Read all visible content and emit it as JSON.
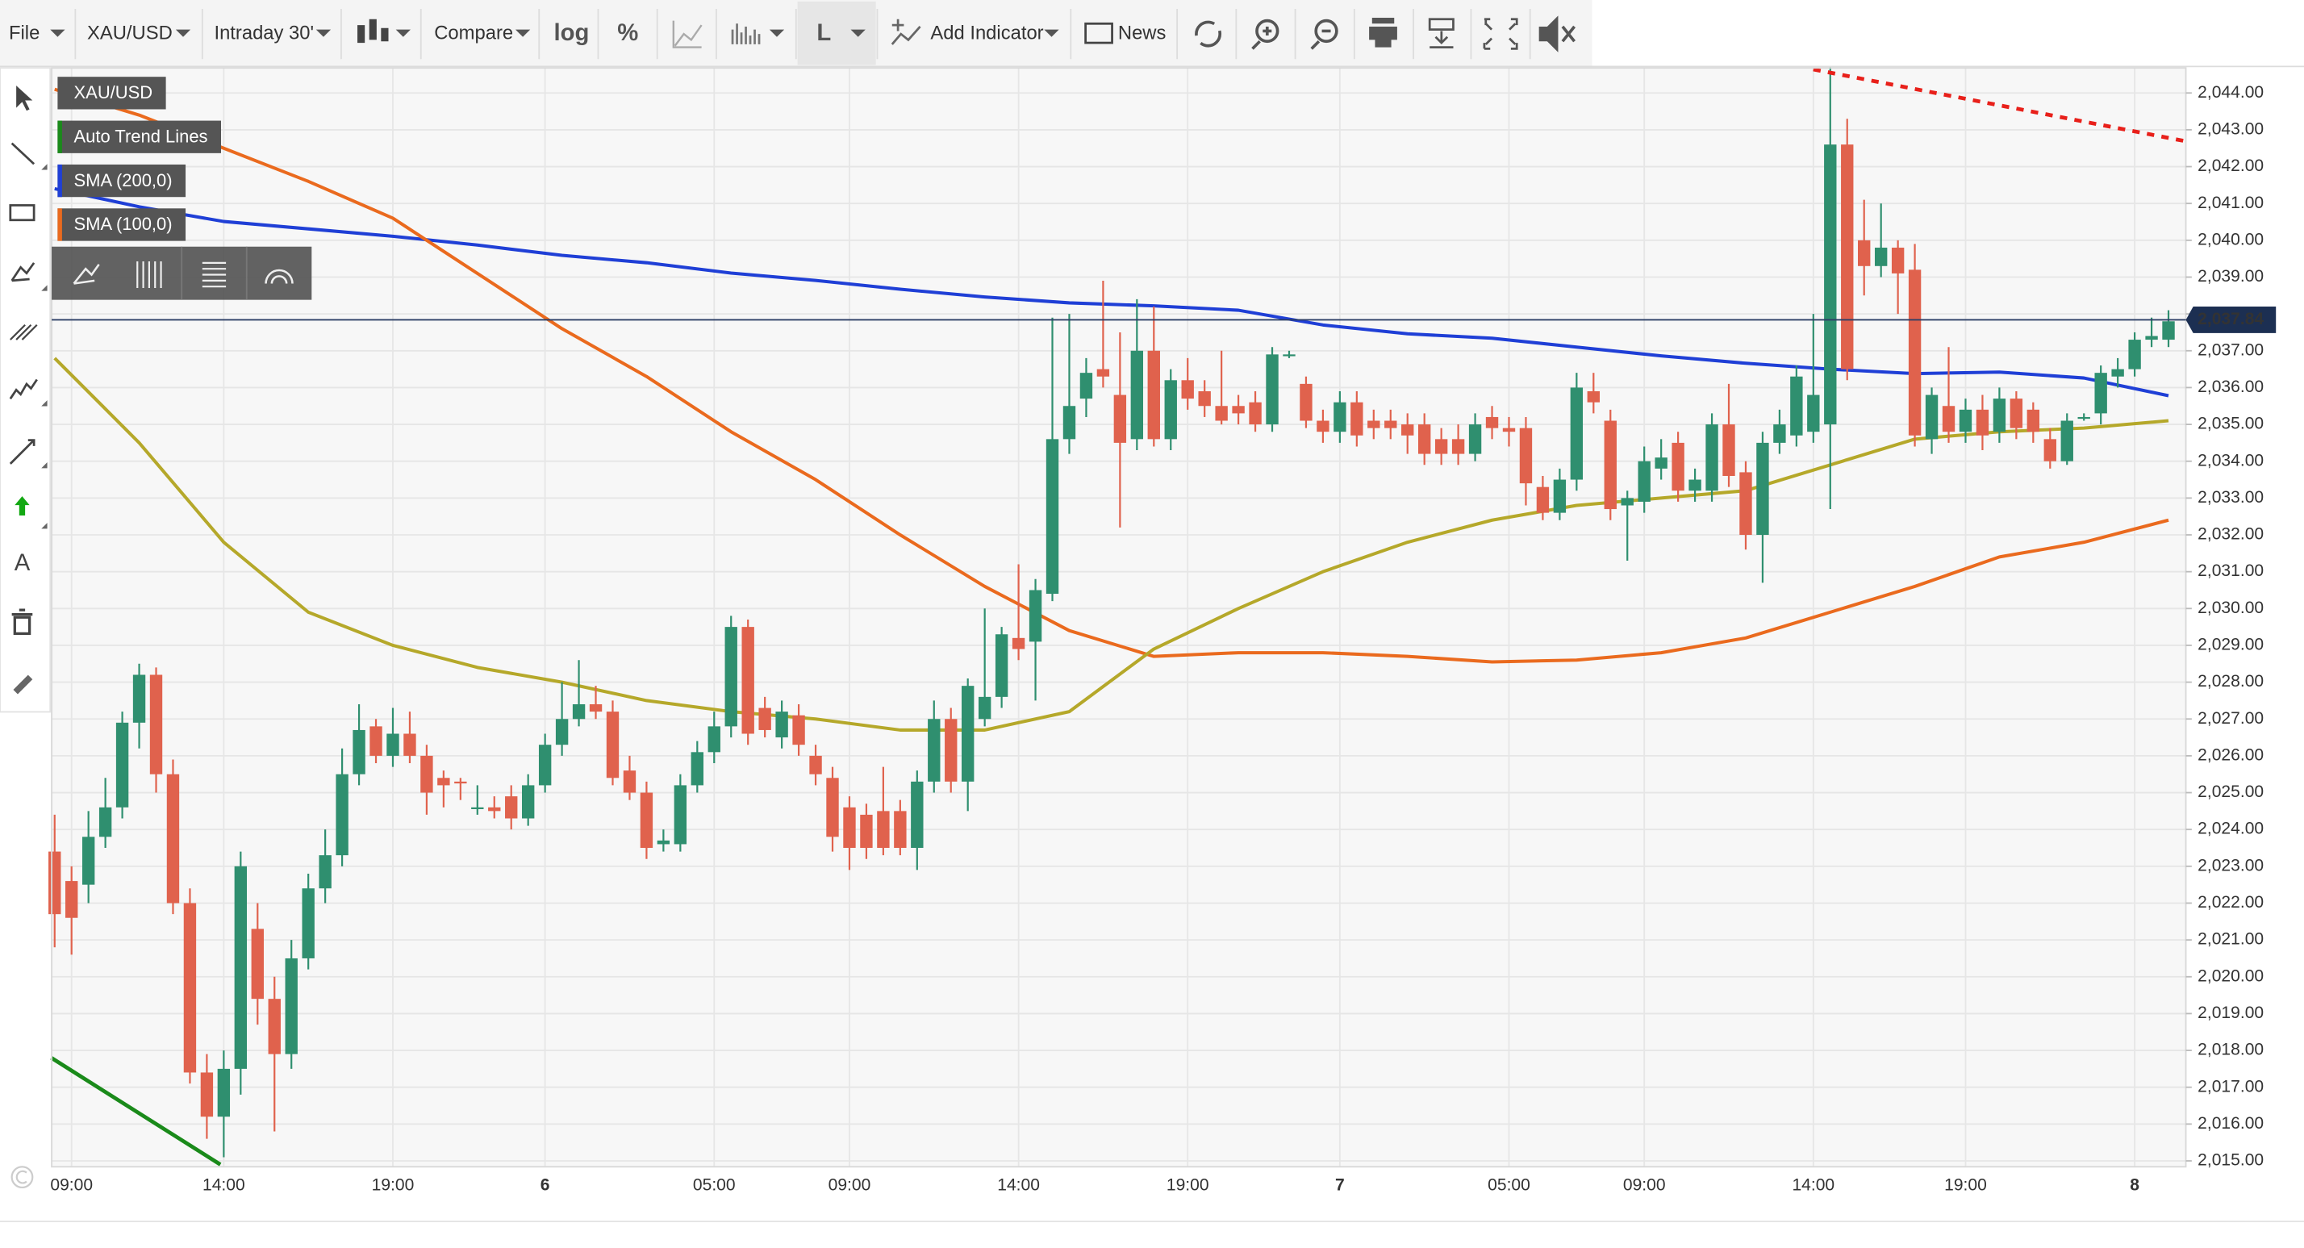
{
  "toolbar": {
    "file": "File",
    "symbol": "XAU/USD",
    "interval": "Intraday 30'",
    "compare": "Compare",
    "log": "log",
    "percent": "%",
    "line_type": "L",
    "add_indicator": "Add Indicator",
    "news": "News"
  },
  "draw_tools": {
    "text": "A"
  },
  "chart_data": {
    "type": "candlestick",
    "name": "XAU/USD",
    "up_color": "#2f8f6f",
    "down_color": "#e0624d",
    "grid": true,
    "ylim": [
      2014.84,
      2044.68
    ],
    "yticks": [
      {
        "value": 2015,
        "label": "2,015.00"
      },
      {
        "value": 2016,
        "label": "2,016.00"
      },
      {
        "value": 2017,
        "label": "2,017.00"
      },
      {
        "value": 2018,
        "label": "2,018.00"
      },
      {
        "value": 2019,
        "label": "2,019.00"
      },
      {
        "value": 2020,
        "label": "2,020.00"
      },
      {
        "value": 2021,
        "label": "2,021.00"
      },
      {
        "value": 2022,
        "label": "2,022.00"
      },
      {
        "value": 2023,
        "label": "2,023.00"
      },
      {
        "value": 2024,
        "label": "2,024.00"
      },
      {
        "value": 2025,
        "label": "2,025.00"
      },
      {
        "value": 2026,
        "label": "2,026.00"
      },
      {
        "value": 2027,
        "label": "2,027.00"
      },
      {
        "value": 2028,
        "label": "2,028.00"
      },
      {
        "value": 2029,
        "label": "2,029.00"
      },
      {
        "value": 2030,
        "label": "2,030.00"
      },
      {
        "value": 2031,
        "label": "2,031.00"
      },
      {
        "value": 2032,
        "label": "2,032.00"
      },
      {
        "value": 2033,
        "label": "2,033.00"
      },
      {
        "value": 2034,
        "label": "2,034.00"
      },
      {
        "value": 2035,
        "label": "2,035.00"
      },
      {
        "value": 2036,
        "label": "2,036.00"
      },
      {
        "value": 2037,
        "label": "2,037.00"
      },
      {
        "value": 2038,
        "label": "2,038.00"
      },
      {
        "value": 2039,
        "label": "2,039.00"
      },
      {
        "value": 2040,
        "label": "2,040.00"
      },
      {
        "value": 2041,
        "label": "2,041.00"
      },
      {
        "value": 2042,
        "label": "2,042.00"
      },
      {
        "value": 2043,
        "label": "2,043.00"
      },
      {
        "value": 2044,
        "label": "2,044.00"
      }
    ],
    "categories": [
      null,
      "09:00",
      null,
      null,
      null,
      null,
      null,
      null,
      null,
      null,
      "14:00",
      null,
      null,
      null,
      null,
      null,
      null,
      null,
      null,
      null,
      "19:00",
      null,
      null,
      null,
      null,
      null,
      null,
      null,
      null,
      "6",
      null,
      null,
      null,
      null,
      null,
      null,
      null,
      null,
      null,
      "05:00",
      null,
      null,
      null,
      null,
      null,
      null,
      null,
      "09:00",
      null,
      null,
      null,
      null,
      null,
      null,
      null,
      null,
      null,
      "14:00",
      null,
      null,
      null,
      null,
      null,
      null,
      null,
      null,
      null,
      "19:00",
      null,
      null,
      null,
      null,
      null,
      null,
      null,
      null,
      "7",
      null,
      null,
      null,
      null,
      null,
      null,
      null,
      null,
      null,
      "05:00",
      null,
      null,
      null,
      null,
      null,
      null,
      null,
      "09:00",
      null,
      null,
      null,
      null,
      null,
      null,
      null,
      null,
      null,
      "14:00",
      null,
      null,
      null,
      null,
      null,
      null,
      null,
      null,
      "19:00",
      null,
      null,
      null,
      null,
      null,
      null,
      null,
      null,
      null,
      "8",
      null,
      null
    ],
    "ohlc": [
      [
        2023.4,
        2024.4,
        2020.8,
        2021.7
      ],
      [
        2022.6,
        2023.0,
        2020.6,
        2021.6
      ],
      [
        2022.5,
        2024.5,
        2022.0,
        2023.8
      ],
      [
        2023.8,
        2025.4,
        2023.5,
        2024.6
      ],
      [
        2024.6,
        2027.2,
        2024.3,
        2026.9
      ],
      [
        2026.9,
        2028.5,
        2026.2,
        2028.2
      ],
      [
        2028.2,
        2028.4,
        2025.0,
        2025.5
      ],
      [
        2025.5,
        2025.9,
        2021.7,
        2022.0
      ],
      [
        2022.0,
        2022.4,
        2017.1,
        2017.4
      ],
      [
        2017.4,
        2017.9,
        2015.6,
        2016.2
      ],
      [
        2016.2,
        2018.0,
        2015.1,
        2017.5
      ],
      [
        2017.5,
        2023.4,
        2016.8,
        2023.0
      ],
      [
        2021.3,
        2022.0,
        2018.7,
        2019.4
      ],
      [
        2019.4,
        2020.0,
        2015.8,
        2017.9
      ],
      [
        2017.9,
        2021.0,
        2017.5,
        2020.5
      ],
      [
        2020.5,
        2022.8,
        2020.2,
        2022.4
      ],
      [
        2022.4,
        2024.0,
        2022.0,
        2023.3
      ],
      [
        2023.3,
        2026.2,
        2023.0,
        2025.5
      ],
      [
        2025.5,
        2027.4,
        2025.2,
        2026.7
      ],
      [
        2026.8,
        2027.0,
        2025.8,
        2026.0
      ],
      [
        2026.0,
        2027.3,
        2025.7,
        2026.6
      ],
      [
        2026.6,
        2027.2,
        2025.8,
        2026.0
      ],
      [
        2026.0,
        2026.3,
        2024.4,
        2025.0
      ],
      [
        2025.4,
        2025.6,
        2024.6,
        2025.2
      ],
      [
        2025.3,
        2025.4,
        2024.8,
        2025.25
      ],
      [
        2024.6,
        2025.2,
        2024.4,
        2024.6
      ],
      [
        2024.6,
        2024.9,
        2024.3,
        2024.5
      ],
      [
        2024.9,
        2025.2,
        2024.0,
        2024.3
      ],
      [
        2024.3,
        2025.5,
        2024.1,
        2025.2
      ],
      [
        2025.2,
        2026.6,
        2025.0,
        2026.3
      ],
      [
        2026.3,
        2028.0,
        2026.0,
        2027.0
      ],
      [
        2027.0,
        2028.6,
        2026.8,
        2027.4
      ],
      [
        2027.4,
        2027.9,
        2027.0,
        2027.2
      ],
      [
        2027.2,
        2027.5,
        2025.2,
        2025.4
      ],
      [
        2025.6,
        2026.0,
        2024.8,
        2025.0
      ],
      [
        2025.0,
        2025.3,
        2023.2,
        2023.5
      ],
      [
        2023.6,
        2024.0,
        2023.4,
        2023.7
      ],
      [
        2023.6,
        2025.5,
        2023.4,
        2025.2
      ],
      [
        2025.2,
        2026.4,
        2025.0,
        2026.1
      ],
      [
        2026.1,
        2027.2,
        2025.8,
        2026.8
      ],
      [
        2026.8,
        2029.8,
        2026.5,
        2029.5
      ],
      [
        2029.5,
        2029.7,
        2026.3,
        2026.6
      ],
      [
        2027.3,
        2027.6,
        2026.5,
        2026.7
      ],
      [
        2026.5,
        2027.5,
        2026.2,
        2027.2
      ],
      [
        2027.1,
        2027.4,
        2026.0,
        2026.3
      ],
      [
        2026.0,
        2026.3,
        2025.2,
        2025.5
      ],
      [
        2025.4,
        2025.7,
        2023.4,
        2023.8
      ],
      [
        2024.6,
        2024.9,
        2022.9,
        2023.5
      ],
      [
        2024.4,
        2024.7,
        2023.2,
        2023.5
      ],
      [
        2024.5,
        2025.7,
        2023.3,
        2023.5
      ],
      [
        2024.5,
        2024.8,
        2023.3,
        2023.5
      ],
      [
        2023.5,
        2025.6,
        2022.9,
        2025.3
      ],
      [
        2025.3,
        2027.5,
        2025.0,
        2027.0
      ],
      [
        2027.0,
        2027.3,
        2025.0,
        2025.3
      ],
      [
        2025.3,
        2028.1,
        2024.5,
        2027.9
      ],
      [
        2027.0,
        2030.0,
        2026.8,
        2027.6
      ],
      [
        2027.6,
        2029.5,
        2027.3,
        2029.3
      ],
      [
        2029.2,
        2031.2,
        2028.6,
        2028.9
      ],
      [
        2029.1,
        2030.8,
        2027.5,
        2030.5
      ],
      [
        2030.4,
        2037.9,
        2030.2,
        2034.6
      ],
      [
        2034.6,
        2038.0,
        2034.2,
        2035.5
      ],
      [
        2035.7,
        2036.8,
        2035.2,
        2036.4
      ],
      [
        2036.5,
        2038.9,
        2036.0,
        2036.3
      ],
      [
        2035.8,
        2037.5,
        2032.2,
        2034.5
      ],
      [
        2034.6,
        2038.4,
        2034.3,
        2037.0
      ],
      [
        2037.0,
        2038.2,
        2034.4,
        2034.6
      ],
      [
        2034.6,
        2036.5,
        2034.3,
        2036.2
      ],
      [
        2036.2,
        2036.8,
        2035.4,
        2035.7
      ],
      [
        2035.9,
        2036.2,
        2035.2,
        2035.5
      ],
      [
        2035.5,
        2037.0,
        2035.0,
        2035.1
      ],
      [
        2035.5,
        2035.8,
        2035.0,
        2035.3
      ],
      [
        2035.6,
        2035.9,
        2034.8,
        2035.0
      ],
      [
        2035.0,
        2037.1,
        2034.8,
        2036.9
      ],
      [
        2036.9,
        2037.0,
        2036.8,
        2036.9
      ],
      [
        2036.1,
        2036.3,
        2034.9,
        2035.1
      ],
      [
        2035.1,
        2035.4,
        2034.5,
        2034.8
      ],
      [
        2034.8,
        2035.9,
        2034.5,
        2035.6
      ],
      [
        2035.6,
        2035.9,
        2034.4,
        2034.7
      ],
      [
        2035.1,
        2035.4,
        2034.6,
        2034.9
      ],
      [
        2035.1,
        2035.4,
        2034.6,
        2034.9
      ],
      [
        2035.0,
        2035.3,
        2034.2,
        2034.7
      ],
      [
        2035.0,
        2035.3,
        2033.9,
        2034.2
      ],
      [
        2034.6,
        2034.9,
        2033.9,
        2034.2
      ],
      [
        2034.6,
        2035.0,
        2033.9,
        2034.2
      ],
      [
        2034.2,
        2035.3,
        2034.0,
        2035.0
      ],
      [
        2035.2,
        2035.5,
        2034.6,
        2034.9
      ],
      [
        2034.9,
        2035.2,
        2034.4,
        2034.8
      ],
      [
        2034.9,
        2035.2,
        2032.8,
        2033.4
      ],
      [
        2033.3,
        2033.6,
        2032.4,
        2032.6
      ],
      [
        2032.6,
        2033.8,
        2032.4,
        2033.5
      ],
      [
        2033.5,
        2036.4,
        2033.2,
        2036.0
      ],
      [
        2035.9,
        2036.4,
        2035.3,
        2035.6
      ],
      [
        2035.1,
        2035.4,
        2032.4,
        2032.7
      ],
      [
        2032.8,
        2033.2,
        2031.3,
        2033.0
      ],
      [
        2032.9,
        2034.4,
        2032.6,
        2034.0
      ],
      [
        2033.8,
        2034.6,
        2033.5,
        2034.1
      ],
      [
        2034.5,
        2034.8,
        2032.9,
        2033.2
      ],
      [
        2033.2,
        2033.8,
        2032.9,
        2033.5
      ],
      [
        2033.2,
        2035.3,
        2032.9,
        2035.0
      ],
      [
        2035.0,
        2036.1,
        2033.3,
        2033.6
      ],
      [
        2033.7,
        2034.0,
        2031.6,
        2032.0
      ],
      [
        2032.0,
        2034.8,
        2030.7,
        2034.5
      ],
      [
        2034.5,
        2035.4,
        2034.2,
        2035.0
      ],
      [
        2034.7,
        2036.6,
        2034.4,
        2036.3
      ],
      [
        2034.8,
        2038.0,
        2034.5,
        2035.8
      ],
      [
        2035.0,
        2044.7,
        2032.7,
        2042.6
      ],
      [
        2042.6,
        2043.3,
        2036.2,
        2036.5
      ],
      [
        2040.0,
        2041.1,
        2038.5,
        2039.3
      ],
      [
        2039.3,
        2041.0,
        2039.0,
        2039.8
      ],
      [
        2039.8,
        2040.0,
        2038.0,
        2039.1
      ],
      [
        2039.2,
        2039.9,
        2034.4,
        2034.7
      ],
      [
        2034.6,
        2036.0,
        2034.2,
        2035.8
      ],
      [
        2035.5,
        2037.1,
        2034.5,
        2034.8
      ],
      [
        2034.8,
        2035.7,
        2034.5,
        2035.4
      ],
      [
        2035.4,
        2035.8,
        2034.3,
        2034.7
      ],
      [
        2034.8,
        2036.0,
        2034.5,
        2035.7
      ],
      [
        2035.7,
        2035.9,
        2034.6,
        2034.9
      ],
      [
        2035.4,
        2035.6,
        2034.5,
        2034.8
      ],
      [
        2034.6,
        2034.9,
        2033.8,
        2034.0
      ],
      [
        2034.0,
        2035.3,
        2033.9,
        2035.1
      ],
      [
        2035.2,
        2035.3,
        2035.1,
        2035.2
      ],
      [
        2035.3,
        2036.6,
        2035.0,
        2036.4
      ],
      [
        2036.3,
        2036.8,
        2036.0,
        2036.5
      ],
      [
        2036.5,
        2037.5,
        2036.3,
        2037.3
      ],
      [
        2037.3,
        2037.9,
        2037.1,
        2037.4
      ],
      [
        2037.3,
        2038.1,
        2037.1,
        2037.8
      ]
    ],
    "series": [
      {
        "name": "SMA (200,0)",
        "color": "#1f3fd6",
        "x": [
          0,
          5,
          10,
          15,
          20,
          25,
          30,
          35,
          40,
          45,
          50,
          55,
          60,
          65,
          70,
          75,
          80,
          85,
          90,
          95,
          100,
          105,
          110,
          115,
          120,
          125
        ],
        "values": [
          2041.4,
          2040.91,
          2040.51,
          2040.31,
          2040.11,
          2039.87,
          2039.59,
          2039.39,
          2039.11,
          2038.91,
          2038.67,
          2038.46,
          2038.3,
          2038.22,
          2038.1,
          2037.7,
          2037.46,
          2037.34,
          2037.1,
          2036.86,
          2036.66,
          2036.5,
          2036.38,
          2036.42,
          2036.26,
          2035.78
        ]
      },
      {
        "name": "SMA (100,0)",
        "color": "#ea6a1e",
        "x": [
          0,
          5,
          10,
          15,
          20,
          25,
          30,
          35,
          40,
          45,
          50,
          55,
          60,
          65,
          70,
          75,
          80,
          85,
          90,
          95,
          100,
          105,
          110,
          115,
          120,
          125
        ],
        "values": [
          2044.1,
          2043.4,
          2042.5,
          2041.6,
          2040.6,
          2039.1,
          2037.6,
          2036.3,
          2034.8,
          2033.5,
          2032.0,
          2030.6,
          2029.4,
          2028.7,
          2028.8,
          2028.8,
          2028.7,
          2028.55,
          2028.6,
          2028.8,
          2029.2,
          2029.9,
          2030.6,
          2031.4,
          2031.8,
          2032.4
        ]
      },
      {
        "color": "#b5a82a",
        "x": [
          0,
          5,
          10,
          15,
          20,
          25,
          30,
          35,
          40,
          45,
          50,
          55,
          60,
          65,
          70,
          75,
          80,
          85,
          90,
          95,
          100,
          105,
          110,
          115,
          120,
          125
        ],
        "values": [
          2036.8,
          2034.5,
          2031.8,
          2029.9,
          2029.0,
          2028.4,
          2028.0,
          2027.5,
          2027.2,
          2027.0,
          2026.7,
          2026.7,
          2027.2,
          2028.9,
          2030.0,
          2031.0,
          2031.8,
          2032.4,
          2032.8,
          2033.0,
          2033.2,
          2033.9,
          2034.6,
          2034.8,
          2034.9,
          2035.1
        ]
      }
    ],
    "trend_lines": {
      "name": "Auto Trend Lines",
      "lines": [
        {
          "color": "#1a8a1a",
          "x": [
            -0.2,
            9.8
          ],
          "values": [
            2017.8,
            2014.9
          ]
        },
        {
          "color": "#e8201a",
          "dashed": true,
          "x": [
            104,
            125.9
          ],
          "values": [
            2044.64,
            2042.7
          ]
        }
      ]
    },
    "last_price": {
      "value": 2037.84,
      "label": "2,037.84"
    }
  }
}
